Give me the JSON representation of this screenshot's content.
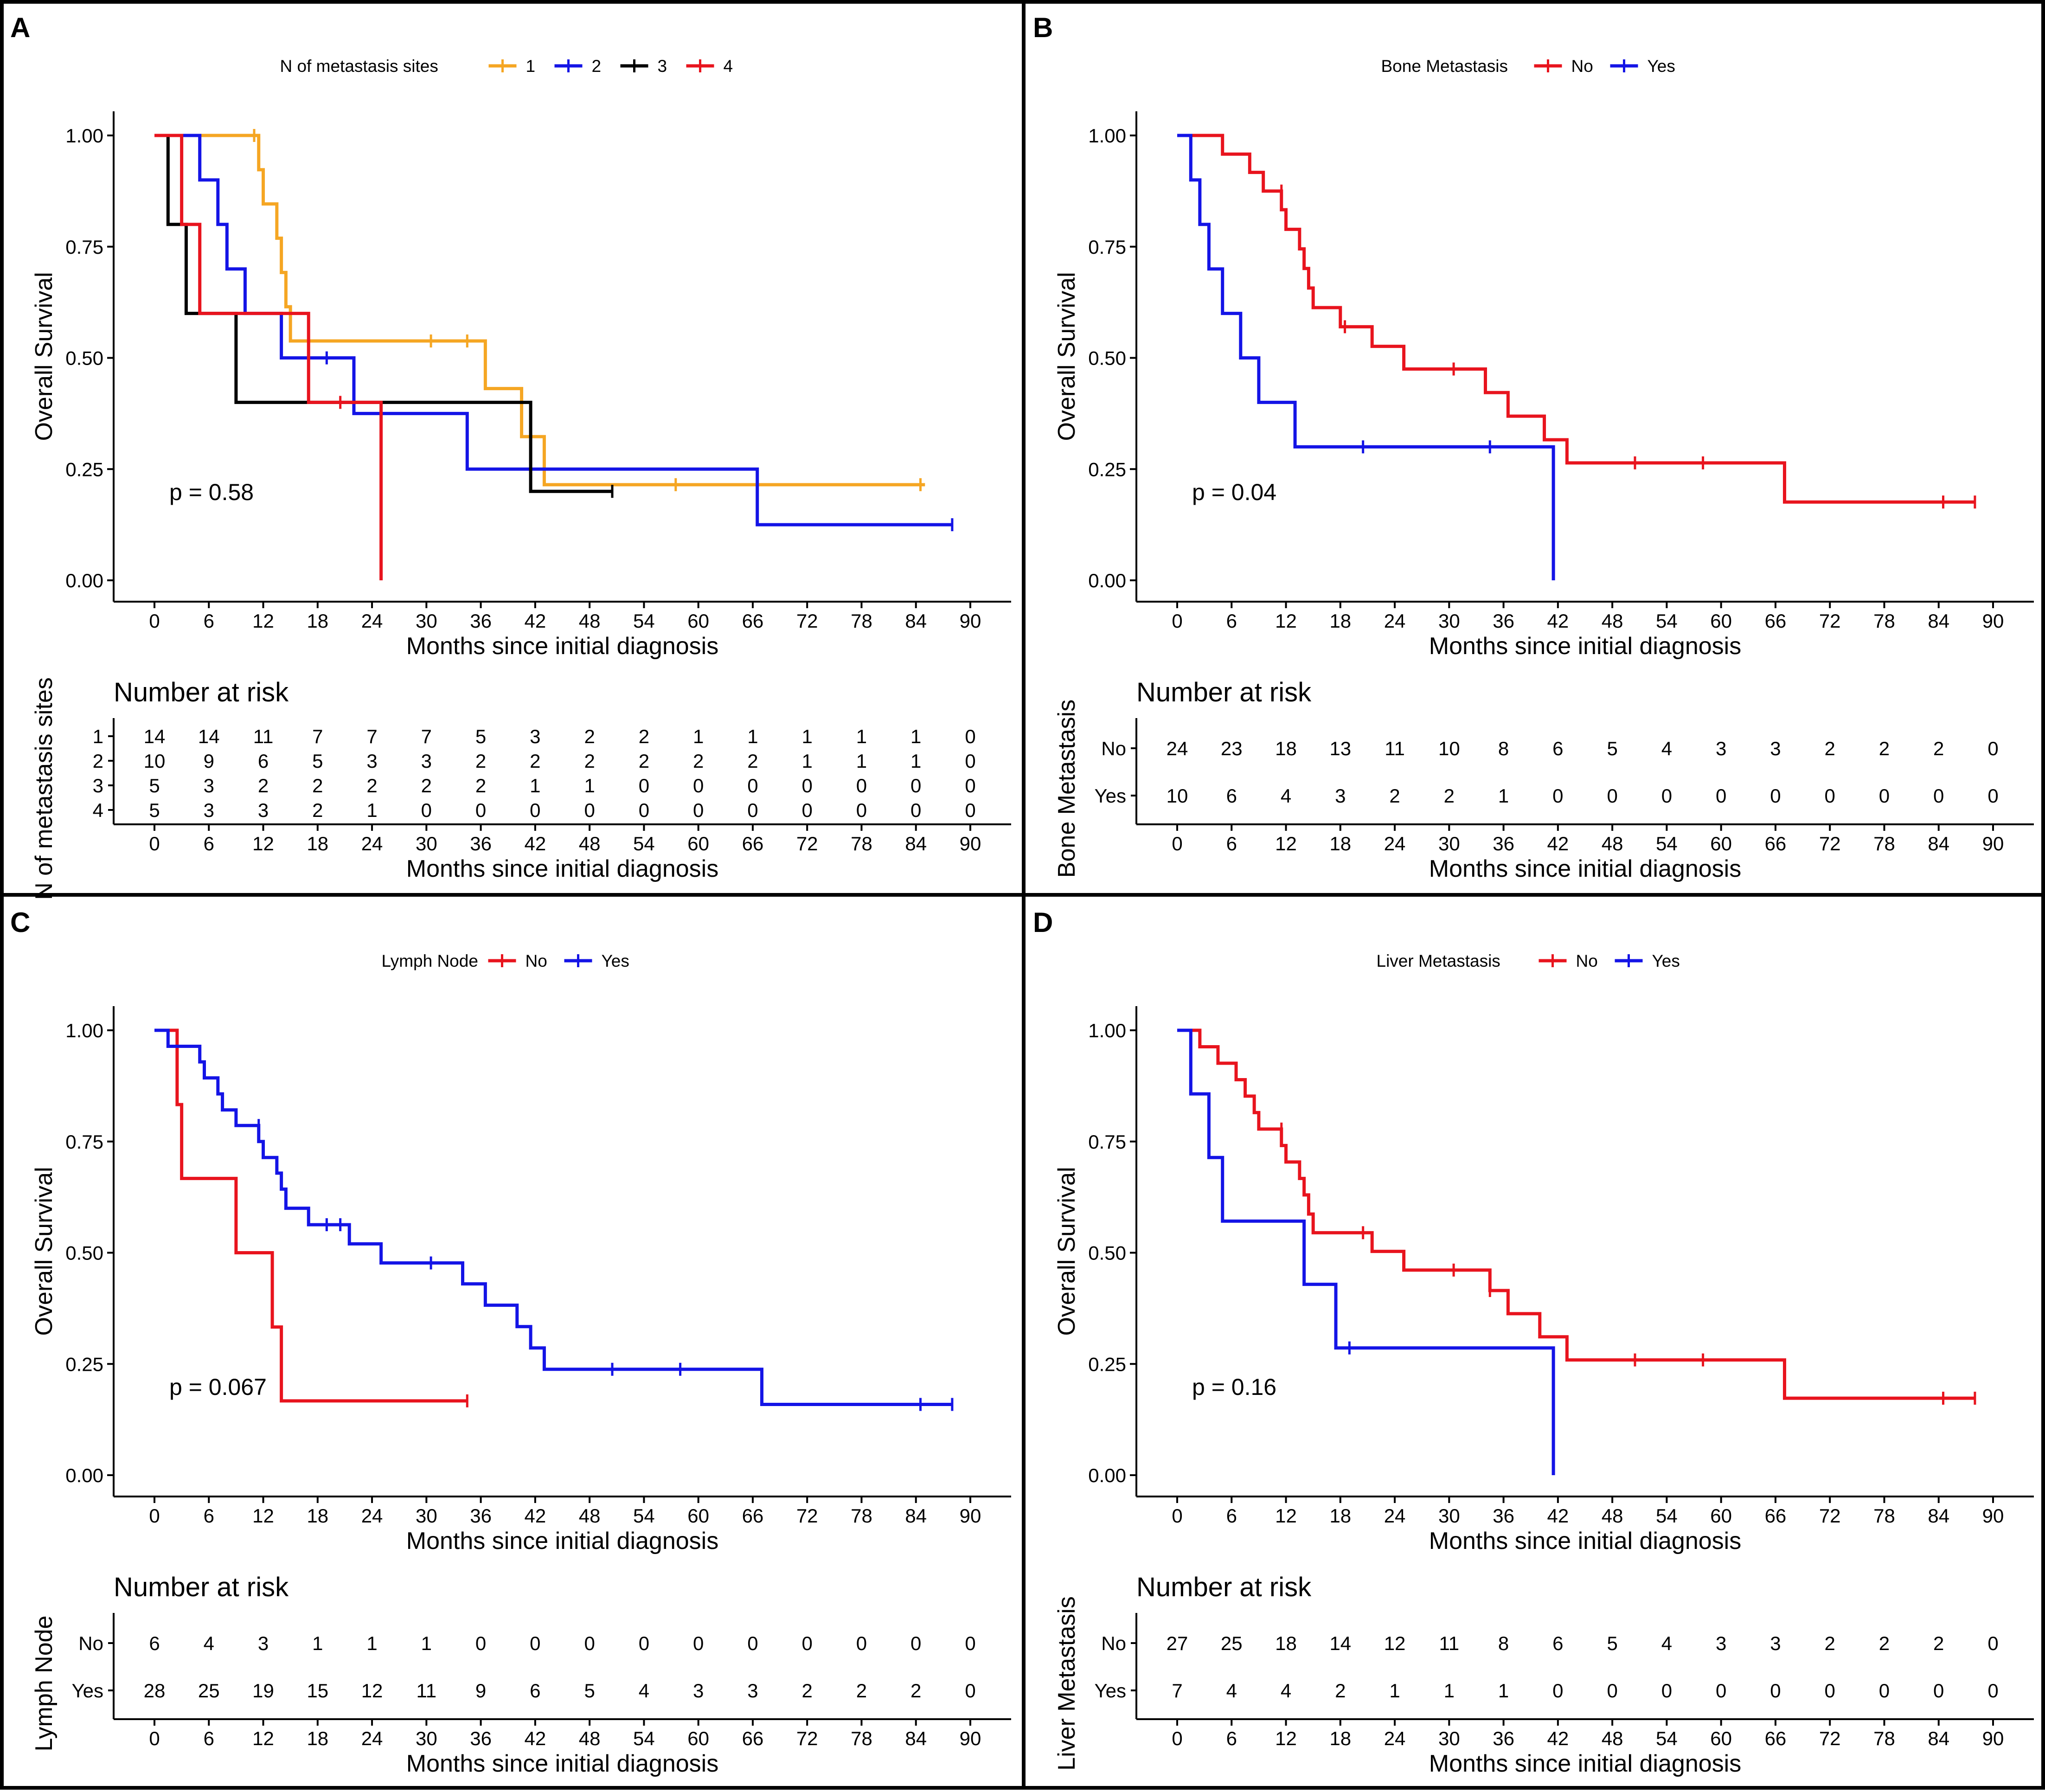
{
  "colors": {
    "orange": "#F5A623",
    "blue": "#1414E6",
    "black": "#000000",
    "red": "#E8141E"
  },
  "chart_data": [
    {
      "panel": "A",
      "type": "line",
      "legend_title": "N of metastasis sites",
      "legend_placement": "top",
      "xlabel": "Months since initial diagnosis",
      "ylabel": "Overall Survival",
      "xlim": [
        0,
        90
      ],
      "ylim": [
        0,
        1
      ],
      "x_ticks": [
        0,
        6,
        12,
        18,
        24,
        30,
        36,
        42,
        48,
        54,
        60,
        66,
        72,
        78,
        84,
        90
      ],
      "y_ticks": [
        "0.00",
        "0.25",
        "0.50",
        "0.75",
        "1.00"
      ],
      "p_value": "p = 0.58",
      "risk_title": "Number at risk",
      "risk_ylabel": "N of metastasis sites",
      "risk_compact": true,
      "series": [
        {
          "name": "1",
          "color": "#F5A623",
          "steps": [
            [
              0,
              1.0
            ],
            [
              11.5,
              0.923
            ],
            [
              12,
              0.846
            ],
            [
              13.5,
              0.769
            ],
            [
              14,
              0.692
            ],
            [
              14.5,
              0.615
            ],
            [
              15,
              0.538
            ],
            [
              36.5,
              0.431
            ],
            [
              40.5,
              0.323
            ],
            [
              43,
              0.215
            ],
            [
              85,
              0.215
            ]
          ],
          "censors": [
            [
              11,
              1.0
            ],
            [
              30.5,
              0.538
            ],
            [
              34.5,
              0.538
            ],
            [
              57.5,
              0.215
            ],
            [
              84.5,
              0.215
            ]
          ],
          "risk": [
            "14",
            "14",
            "11",
            "7",
            "7",
            "7",
            "5",
            "3",
            "2",
            "2",
            "1",
            "1",
            "1",
            "1",
            "1",
            "0"
          ]
        },
        {
          "name": "2",
          "color": "#1414E6",
          "steps": [
            [
              0,
              1.0
            ],
            [
              5,
              0.9
            ],
            [
              7,
              0.8
            ],
            [
              8,
              0.7
            ],
            [
              10,
              0.6
            ],
            [
              14,
              0.5
            ],
            [
              22,
              0.375
            ],
            [
              34.5,
              0.25
            ],
            [
              66.5,
              0.125
            ],
            [
              88,
              0.125
            ]
          ],
          "censors": [
            [
              19,
              0.5
            ],
            [
              88,
              0.125
            ]
          ],
          "risk": [
            "10",
            "9",
            "6",
            "5",
            "3",
            "3",
            "2",
            "2",
            "2",
            "2",
            "2",
            "2",
            "1",
            "1",
            "1",
            "0"
          ]
        },
        {
          "name": "3",
          "color": "#000000",
          "steps": [
            [
              0,
              1.0
            ],
            [
              1.5,
              0.8
            ],
            [
              3.5,
              0.6
            ],
            [
              9,
              0.4
            ],
            [
              41.5,
              0.2
            ],
            [
              50.5,
              0.2
            ]
          ],
          "censors": [
            [
              50.5,
              0.2
            ]
          ],
          "risk": [
            "5",
            "3",
            "2",
            "2",
            "2",
            "2",
            "2",
            "1",
            "1",
            "0",
            "0",
            "0",
            "0",
            "0",
            "0",
            "0"
          ]
        },
        {
          "name": "4",
          "color": "#E8141E",
          "steps": [
            [
              0,
              1.0
            ],
            [
              3,
              0.8
            ],
            [
              5,
              0.6
            ],
            [
              17,
              0.4
            ],
            [
              25,
              0.0
            ]
          ],
          "censors": [
            [
              20.5,
              0.4
            ]
          ],
          "risk": [
            "5",
            "3",
            "3",
            "2",
            "1",
            "0",
            "0",
            "0",
            "0",
            "0",
            "0",
            "0",
            "0",
            "0",
            "0",
            "0"
          ]
        }
      ]
    },
    {
      "panel": "B",
      "type": "line",
      "legend_title": "Bone Metastasis",
      "legend_placement": "top",
      "xlabel": "Months since initial diagnosis",
      "ylabel": "Overall Survival",
      "xlim": [
        0,
        90
      ],
      "ylim": [
        0,
        1
      ],
      "x_ticks": [
        0,
        6,
        12,
        18,
        24,
        30,
        36,
        42,
        48,
        54,
        60,
        66,
        72,
        78,
        84,
        90
      ],
      "y_ticks": [
        "0.00",
        "0.25",
        "0.50",
        "0.75",
        "1.00"
      ],
      "p_value": "p = 0.04",
      "risk_title": "Number at risk",
      "risk_ylabel": "Bone Metastasis",
      "risk_compact": false,
      "series": [
        {
          "name": "No",
          "color": "#E8141E",
          "steps": [
            [
              0,
              1.0
            ],
            [
              5,
              0.958
            ],
            [
              8,
              0.917
            ],
            [
              9.5,
              0.875
            ],
            [
              11.5,
              0.833
            ],
            [
              12,
              0.789
            ],
            [
              13.5,
              0.745
            ],
            [
              14,
              0.701
            ],
            [
              14.5,
              0.657
            ],
            [
              15,
              0.613
            ],
            [
              18,
              0.57
            ],
            [
              21.5,
              0.526
            ],
            [
              25,
              0.475
            ],
            [
              34,
              0.422
            ],
            [
              36.5,
              0.369
            ],
            [
              40.5,
              0.316
            ],
            [
              43,
              0.264
            ],
            [
              67,
              0.176
            ],
            [
              88,
              0.176
            ]
          ],
          "censors": [
            [
              11.5,
              0.875
            ],
            [
              18.5,
              0.57
            ],
            [
              30.5,
              0.475
            ],
            [
              50.5,
              0.264
            ],
            [
              58,
              0.264
            ],
            [
              84.5,
              0.176
            ],
            [
              88,
              0.176
            ]
          ],
          "risk": [
            "24",
            "23",
            "18",
            "13",
            "11",
            "10",
            "8",
            "6",
            "5",
            "4",
            "3",
            "3",
            "2",
            "2",
            "2",
            "0"
          ]
        },
        {
          "name": "Yes",
          "color": "#1414E6",
          "steps": [
            [
              0,
              1.0
            ],
            [
              1.5,
              0.9
            ],
            [
              2.5,
              0.8
            ],
            [
              3.5,
              0.7
            ],
            [
              5,
              0.6
            ],
            [
              7,
              0.5
            ],
            [
              9,
              0.4
            ],
            [
              13,
              0.3
            ],
            [
              41.5,
              0.0
            ]
          ],
          "censors": [
            [
              20.5,
              0.3
            ],
            [
              34.5,
              0.3
            ]
          ],
          "risk": [
            "10",
            "6",
            "4",
            "3",
            "2",
            "2",
            "1",
            "0",
            "0",
            "0",
            "0",
            "0",
            "0",
            "0",
            "0",
            "0"
          ]
        }
      ]
    },
    {
      "panel": "C",
      "type": "line",
      "legend_title": "Lymph Node",
      "legend_placement": "top",
      "xlabel": "Months since initial diagnosis",
      "ylabel": "Overall Survival",
      "xlim": [
        0,
        90
      ],
      "ylim": [
        0,
        1
      ],
      "x_ticks": [
        0,
        6,
        12,
        18,
        24,
        30,
        36,
        42,
        48,
        54,
        60,
        66,
        72,
        78,
        84,
        90
      ],
      "y_ticks": [
        "0.00",
        "0.25",
        "0.50",
        "0.75",
        "1.00"
      ],
      "p_value": "p = 0.067",
      "risk_title": "Number at risk",
      "risk_ylabel": "Lymph Node",
      "risk_compact": false,
      "series": [
        {
          "name": "No",
          "color": "#E8141E",
          "steps": [
            [
              0,
              1.0
            ],
            [
              2.5,
              0.833
            ],
            [
              3,
              0.667
            ],
            [
              9,
              0.5
            ],
            [
              13,
              0.333
            ],
            [
              14,
              0.167
            ],
            [
              34.5,
              0.167
            ]
          ],
          "censors": [
            [
              34.5,
              0.167
            ]
          ],
          "risk": [
            "6",
            "4",
            "3",
            "1",
            "1",
            "1",
            "0",
            "0",
            "0",
            "0",
            "0",
            "0",
            "0",
            "0",
            "0",
            "0"
          ]
        },
        {
          "name": "Yes",
          "color": "#1414E6",
          "steps": [
            [
              0,
              1.0
            ],
            [
              1.5,
              0.964
            ],
            [
              5,
              0.929
            ],
            [
              5.5,
              0.893
            ],
            [
              7,
              0.857
            ],
            [
              7.5,
              0.821
            ],
            [
              9,
              0.786
            ],
            [
              11.5,
              0.75
            ],
            [
              12,
              0.714
            ],
            [
              13.5,
              0.679
            ],
            [
              14,
              0.643
            ],
            [
              14.5,
              0.6
            ],
            [
              17,
              0.563
            ],
            [
              21.5,
              0.52
            ],
            [
              25,
              0.477
            ],
            [
              34,
              0.43
            ],
            [
              36.5,
              0.382
            ],
            [
              40,
              0.334
            ],
            [
              41.5,
              0.286
            ],
            [
              43,
              0.238
            ],
            [
              67,
              0.159
            ],
            [
              88,
              0.159
            ]
          ],
          "censors": [
            [
              11.5,
              0.786
            ],
            [
              19,
              0.563
            ],
            [
              20.5,
              0.563
            ],
            [
              30.5,
              0.477
            ],
            [
              50.5,
              0.238
            ],
            [
              58,
              0.238
            ],
            [
              84.5,
              0.159
            ],
            [
              88,
              0.159
            ]
          ],
          "risk": [
            "28",
            "25",
            "19",
            "15",
            "12",
            "11",
            "9",
            "6",
            "5",
            "4",
            "3",
            "3",
            "2",
            "2",
            "2",
            "0"
          ]
        }
      ]
    },
    {
      "panel": "D",
      "type": "line",
      "legend_title": "Liver Metastasis",
      "legend_placement": "top",
      "xlabel": "Months since initial diagnosis",
      "ylabel": "Overall Survival",
      "xlim": [
        0,
        90
      ],
      "ylim": [
        0,
        1
      ],
      "x_ticks": [
        0,
        6,
        12,
        18,
        24,
        30,
        36,
        42,
        48,
        54,
        60,
        66,
        72,
        78,
        84,
        90
      ],
      "y_ticks": [
        "0.00",
        "0.25",
        "0.50",
        "0.75",
        "1.00"
      ],
      "p_value": "p = 0.16",
      "risk_title": "Number at risk",
      "risk_ylabel": "Liver Metastasis",
      "risk_compact": false,
      "series": [
        {
          "name": "No",
          "color": "#E8141E",
          "steps": [
            [
              0,
              1.0
            ],
            [
              2.5,
              0.963
            ],
            [
              4.5,
              0.926
            ],
            [
              6.5,
              0.889
            ],
            [
              7.5,
              0.852
            ],
            [
              8.5,
              0.815
            ],
            [
              9,
              0.778
            ],
            [
              11.5,
              0.741
            ],
            [
              12,
              0.704
            ],
            [
              13.5,
              0.667
            ],
            [
              14,
              0.63
            ],
            [
              14.5,
              0.587
            ],
            [
              15,
              0.545
            ],
            [
              21.5,
              0.503
            ],
            [
              25,
              0.461
            ],
            [
              34.5,
              0.415
            ],
            [
              36.5,
              0.363
            ],
            [
              40,
              0.311
            ],
            [
              43,
              0.259
            ],
            [
              67,
              0.173
            ],
            [
              88,
              0.173
            ]
          ],
          "censors": [
            [
              11.5,
              0.778
            ],
            [
              20.5,
              0.545
            ],
            [
              30.5,
              0.461
            ],
            [
              34.5,
              0.415
            ],
            [
              50.5,
              0.259
            ],
            [
              58,
              0.259
            ],
            [
              84.5,
              0.173
            ],
            [
              88,
              0.173
            ]
          ],
          "risk": [
            "27",
            "25",
            "18",
            "14",
            "12",
            "11",
            "8",
            "6",
            "5",
            "4",
            "3",
            "3",
            "2",
            "2",
            "2",
            "0"
          ]
        },
        {
          "name": "Yes",
          "color": "#1414E6",
          "steps": [
            [
              0,
              1.0
            ],
            [
              1.5,
              0.857
            ],
            [
              3.5,
              0.714
            ],
            [
              5,
              0.571
            ],
            [
              14,
              0.429
            ],
            [
              17.5,
              0.286
            ],
            [
              41.5,
              0.0
            ]
          ],
          "censors": [
            [
              19,
              0.286
            ]
          ],
          "risk": [
            "7",
            "4",
            "4",
            "2",
            "1",
            "1",
            "1",
            "0",
            "0",
            "0",
            "0",
            "0",
            "0",
            "0",
            "0",
            "0"
          ]
        }
      ]
    }
  ]
}
